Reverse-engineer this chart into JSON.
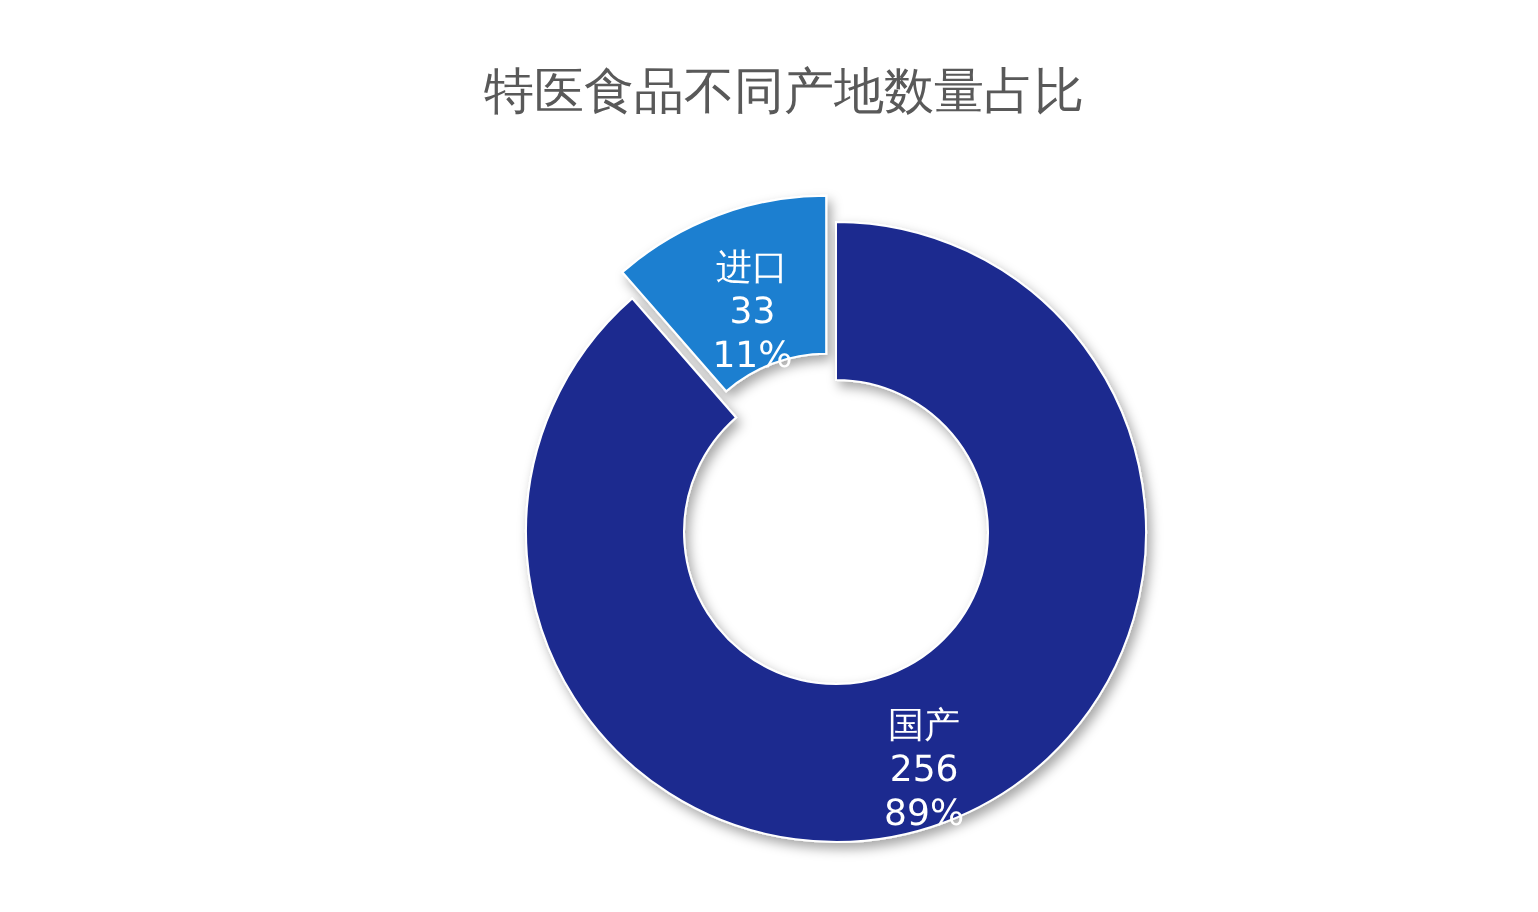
{
  "chart_data": {
    "type": "donut",
    "title": "特医食品不同产地数量占比",
    "categories": [
      "国产",
      "进口"
    ],
    "values": [
      256,
      33
    ],
    "colors": [
      "#1b2a8f",
      "#1a7fd0"
    ],
    "value_labels": [
      "256\n89%",
      "33\n11%"
    ]
  }
}
